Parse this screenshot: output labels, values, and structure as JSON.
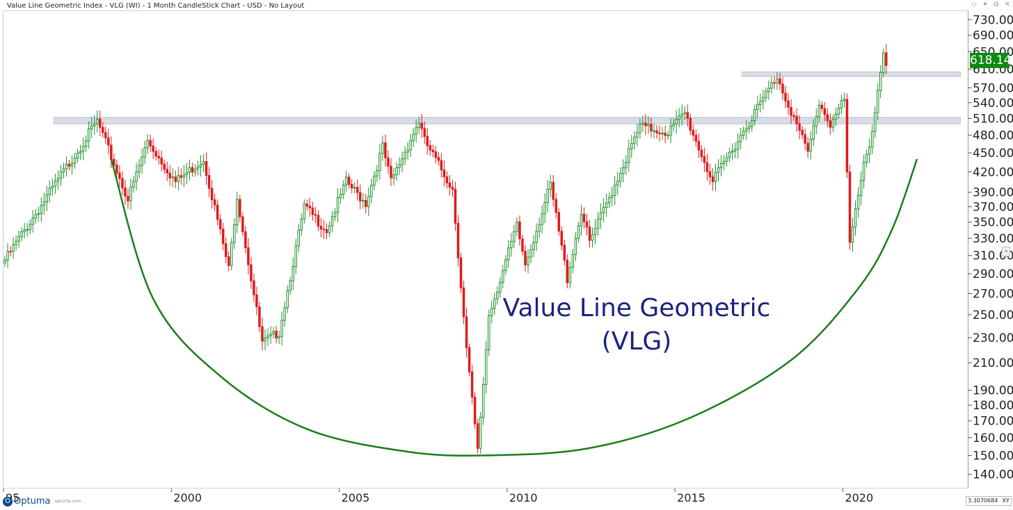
{
  "window": {
    "title": "Value Line Geometric Index - VLG (WI) - 1 Month CandleStick Chart - USD - No Layout",
    "controls": [
      {
        "name": "pin-icon",
        "glyph": "◇"
      },
      {
        "name": "pushpin-icon",
        "glyph": "✦"
      },
      {
        "name": "restore-icon",
        "glyph": "⧉"
      },
      {
        "name": "close-icon",
        "glyph": "✕"
      }
    ]
  },
  "chart_data": {
    "type": "candlestick",
    "title": "",
    "xlabel": "",
    "ylabel": "",
    "y_scale": "log",
    "ylim": [
      133,
      755
    ],
    "x_range": [
      1995.0,
      2023.7
    ],
    "yticks": [
      "730.00",
      "690.00",
      "650.00",
      "610.00",
      "570.00",
      "540.00",
      "510.00",
      "480.00",
      "450.00",
      "420.00",
      "390.00",
      "370.00",
      "350.00",
      "330.00",
      "310.00",
      "290.00",
      "270.00",
      "250.00",
      "230.00",
      "210.00",
      "190.00",
      "180.00",
      "170.00",
      "160.00",
      "150.00",
      "140.00"
    ],
    "xticks": [
      {
        "label": "95",
        "year": 1995
      },
      {
        "label": "2000",
        "year": 2000
      },
      {
        "label": "2005",
        "year": 2005
      },
      {
        "label": "2010",
        "year": 2010
      },
      {
        "label": "2015",
        "year": 2015
      },
      {
        "label": "2020",
        "year": 2020
      }
    ],
    "last_price": "618.14",
    "resistance_zones": [
      {
        "x_start": 1996.5,
        "x_end": 2023.5,
        "price_low": 500,
        "price_high": 512
      },
      {
        "x_start": 2017.0,
        "x_end": 2023.5,
        "price_low": 594,
        "price_high": 604
      }
    ],
    "key_points": [
      {
        "date": "1995-01",
        "price": 305
      },
      {
        "date": "1997-10",
        "price": 505
      },
      {
        "date": "1998-09",
        "price": 380
      },
      {
        "date": "1999-04",
        "price": 470
      },
      {
        "date": "2000-02",
        "price": 405
      },
      {
        "date": "2000-12",
        "price": 440
      },
      {
        "date": "2001-09",
        "price": 295
      },
      {
        "date": "2001-12",
        "price": 385
      },
      {
        "date": "2002-09",
        "price": 225
      },
      {
        "date": "2003-03",
        "price": 235
      },
      {
        "date": "2003-12",
        "price": 370
      },
      {
        "date": "2004-08",
        "price": 340
      },
      {
        "date": "2005-03",
        "price": 405
      },
      {
        "date": "2005-10",
        "price": 375
      },
      {
        "date": "2006-04",
        "price": 460
      },
      {
        "date": "2006-07",
        "price": 405
      },
      {
        "date": "2007-05",
        "price": 505
      },
      {
        "date": "2007-07",
        "price": 470
      },
      {
        "date": "2008-05",
        "price": 395
      },
      {
        "date": "2008-10",
        "price": 220
      },
      {
        "date": "2009-02",
        "price": 152
      },
      {
        "date": "2009-06",
        "price": 250
      },
      {
        "date": "2010-04",
        "price": 345
      },
      {
        "date": "2010-07",
        "price": 300
      },
      {
        "date": "2011-04",
        "price": 400
      },
      {
        "date": "2011-10",
        "price": 285
      },
      {
        "date": "2012-03",
        "price": 365
      },
      {
        "date": "2012-06",
        "price": 325
      },
      {
        "date": "2013-12",
        "price": 495
      },
      {
        "date": "2014-10",
        "price": 485
      },
      {
        "date": "2015-04",
        "price": 520
      },
      {
        "date": "2015-08",
        "price": 470
      },
      {
        "date": "2016-02",
        "price": 405
      },
      {
        "date": "2016-12",
        "price": 480
      },
      {
        "date": "2018-01",
        "price": 595
      },
      {
        "date": "2018-03",
        "price": 565
      },
      {
        "date": "2018-12",
        "price": 450
      },
      {
        "date": "2019-04",
        "price": 540
      },
      {
        "date": "2019-08",
        "price": 500
      },
      {
        "date": "2020-01",
        "price": 545
      },
      {
        "date": "2020-03",
        "price": 320
      },
      {
        "date": "2020-08",
        "price": 440
      },
      {
        "date": "2020-10",
        "price": 460
      },
      {
        "date": "2021-01",
        "price": 560
      },
      {
        "date": "2021-03",
        "price": 640
      },
      {
        "date": "2021-04",
        "price": 618
      }
    ],
    "cup_curve": [
      {
        "date": "1998-03",
        "price": 440
      },
      {
        "date": "1999-06",
        "price": 265
      },
      {
        "date": "2001-06",
        "price": 200
      },
      {
        "date": "2004-01",
        "price": 165
      },
      {
        "date": "2007-01",
        "price": 152
      },
      {
        "date": "2009-06",
        "price": 150
      },
      {
        "date": "2012-06",
        "price": 154
      },
      {
        "date": "2015-06",
        "price": 172
      },
      {
        "date": "2018-06",
        "price": 212
      },
      {
        "date": "2020-06",
        "price": 275
      },
      {
        "date": "2021-06",
        "price": 340
      },
      {
        "date": "2022-03",
        "price": 440
      }
    ],
    "annotation": [
      "Value Line Geometric",
      "(VLG)"
    ],
    "colors": {
      "up": "#1e8f2a",
      "down": "#e01b1b",
      "cup": "#1a7d1a",
      "zone": "#d9dde6",
      "annotation": "#1a237e",
      "badge": "#0d8a12"
    }
  },
  "footer": {
    "logo_text": "Optuma",
    "logo_url": "optuma.com",
    "readout_value": "3.3070684",
    "readout_mode": "XY",
    "side_button": "≡"
  }
}
